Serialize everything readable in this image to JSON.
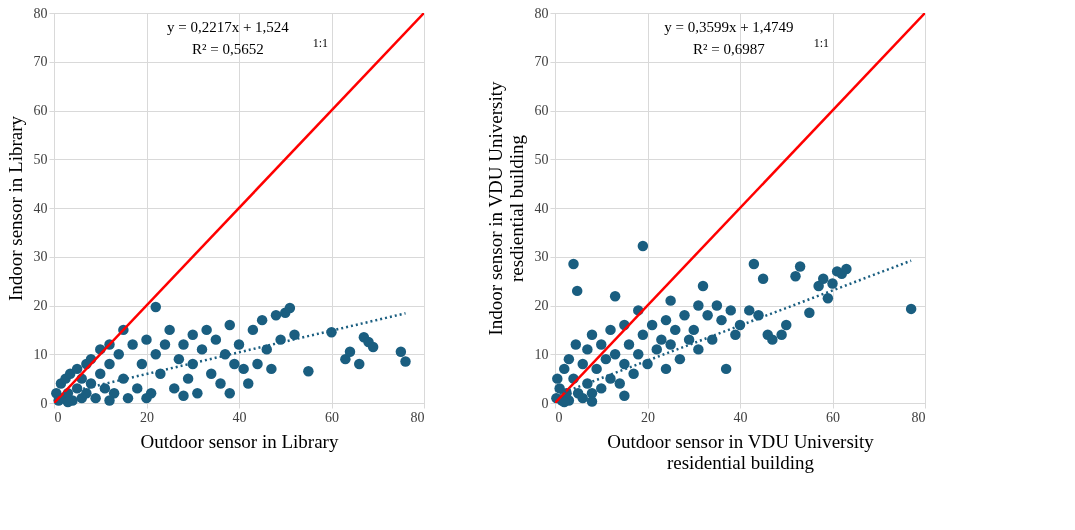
{
  "chart_data": [
    {
      "type": "scatter",
      "xlabel": "Outdoor sensor in Library",
      "ylabel": "Indoor sensor in Library",
      "xlim": [
        0,
        80
      ],
      "ylim": [
        0,
        80
      ],
      "xticks": [
        0,
        20,
        40,
        60,
        80
      ],
      "yticks": [
        0,
        10,
        20,
        30,
        40,
        50,
        60,
        70,
        80
      ],
      "grid": true,
      "annotations": [
        "y = 0,2217x + 1,524",
        "R² = 0,5652",
        "1:1"
      ],
      "series": [
        {
          "marker": "circle",
          "color": "#1a5e80",
          "x": [
            0.5,
            1,
            1.5,
            2,
            2.5,
            3,
            3.5,
            4,
            5,
            5,
            6,
            6,
            7,
            7,
            8,
            8,
            9,
            10,
            10,
            11,
            12,
            12,
            13,
            14,
            15,
            15,
            16,
            17,
            18,
            19,
            20,
            21,
            22,
            22,
            23,
            24,
            25,
            26,
            27,
            28,
            29,
            30,
            30,
            31,
            32,
            33,
            34,
            35,
            36,
            37,
            38,
            38,
            39,
            40,
            41,
            42,
            43,
            44,
            45,
            46,
            47,
            48,
            49,
            50,
            51,
            52,
            55,
            60,
            63,
            64,
            66,
            67,
            68,
            69,
            75,
            76,
            3,
            12,
            20,
            28
          ],
          "values": [
            2,
            0.5,
            4,
            1,
            5,
            2,
            6,
            0.5,
            3,
            7,
            1,
            5,
            8,
            2,
            4,
            9,
            1,
            6,
            11,
            3,
            8,
            12,
            2,
            10,
            15,
            5,
            1,
            12,
            3,
            8,
            13,
            2,
            19.7,
            10,
            6,
            12,
            15,
            3,
            9,
            12,
            5,
            14,
            8,
            2,
            11,
            15,
            6,
            13,
            4,
            10,
            16,
            2,
            8,
            12,
            7,
            4,
            15,
            8,
            17,
            11,
            7,
            18,
            13,
            18.5,
            19.5,
            14,
            6.5,
            14.5,
            9,
            10.5,
            8,
            13.5,
            12.5,
            11.5,
            10.5,
            8.5,
            0.2,
            0.5,
            1,
            1.5
          ]
        },
        {
          "type": "line",
          "color": "#ff0000",
          "line_style": "solid",
          "x": [
            0,
            80
          ],
          "values": [
            0,
            80
          ]
        },
        {
          "type": "line",
          "color": "#1a5e80",
          "line_style": "dotted",
          "x": [
            0,
            76
          ],
          "values": [
            1.5,
            18.4
          ]
        }
      ]
    },
    {
      "type": "scatter",
      "xlabel": "Outdoor sensor in VDU University\nresidential building",
      "ylabel": "Indoor sensor in VDU University\nresdiential building",
      "xlim": [
        0,
        80
      ],
      "ylim": [
        0,
        80
      ],
      "xticks": [
        0,
        20,
        40,
        60,
        80
      ],
      "yticks": [
        0,
        10,
        20,
        30,
        40,
        50,
        60,
        70,
        80
      ],
      "grid": true,
      "annotations": [
        "y = 0,3599x + 1,4749",
        "R² = 0,6987",
        "1:1"
      ],
      "series": [
        {
          "marker": "circle",
          "color": "#1a5e80",
          "x": [
            0.3,
            0.5,
            1,
            1.5,
            2,
            2.5,
            3,
            3,
            4,
            4.8,
            4,
            4.5,
            5,
            6,
            6,
            7,
            7,
            8,
            8,
            9,
            10,
            10,
            11,
            12,
            12,
            13,
            13,
            14,
            15,
            15,
            16,
            17,
            18,
            18,
            19,
            19,
            20,
            21,
            22,
            23,
            24,
            24,
            25,
            25,
            26,
            27,
            28,
            29,
            30,
            31,
            31,
            32,
            33,
            34,
            35,
            36,
            37,
            38,
            39,
            40,
            42,
            43,
            44,
            45,
            46,
            47,
            49,
            50,
            52,
            53,
            55,
            57,
            58,
            59,
            60,
            61,
            62,
            63,
            77,
            2,
            8,
            15
          ],
          "values": [
            1,
            5,
            3,
            0.5,
            7,
            2,
            9,
            0.5,
            28.5,
            23,
            5,
            12,
            2,
            8,
            1,
            11,
            4,
            14,
            2,
            7,
            12,
            3,
            9,
            15,
            5,
            21.9,
            10,
            4,
            16,
            8,
            12,
            6,
            19,
            10,
            32.2,
            14,
            8,
            16,
            11,
            13,
            17,
            7,
            21,
            12,
            15,
            9,
            18,
            13,
            15,
            20,
            11,
            24,
            18,
            13,
            20,
            17,
            7,
            19,
            14,
            16,
            19,
            28.5,
            18,
            25.5,
            14,
            13,
            14,
            16,
            26,
            28,
            18.5,
            24,
            25.5,
            21.5,
            24.5,
            27,
            26.5,
            27.5,
            19.3,
            0.2,
            0.3,
            1.5
          ]
        },
        {
          "type": "line",
          "color": "#ff0000",
          "line_style": "solid",
          "x": [
            0,
            80
          ],
          "values": [
            0,
            80
          ]
        },
        {
          "type": "line",
          "color": "#1a5e80",
          "line_style": "dotted",
          "x": [
            0,
            77
          ],
          "values": [
            1.5,
            29.2
          ]
        }
      ]
    }
  ]
}
